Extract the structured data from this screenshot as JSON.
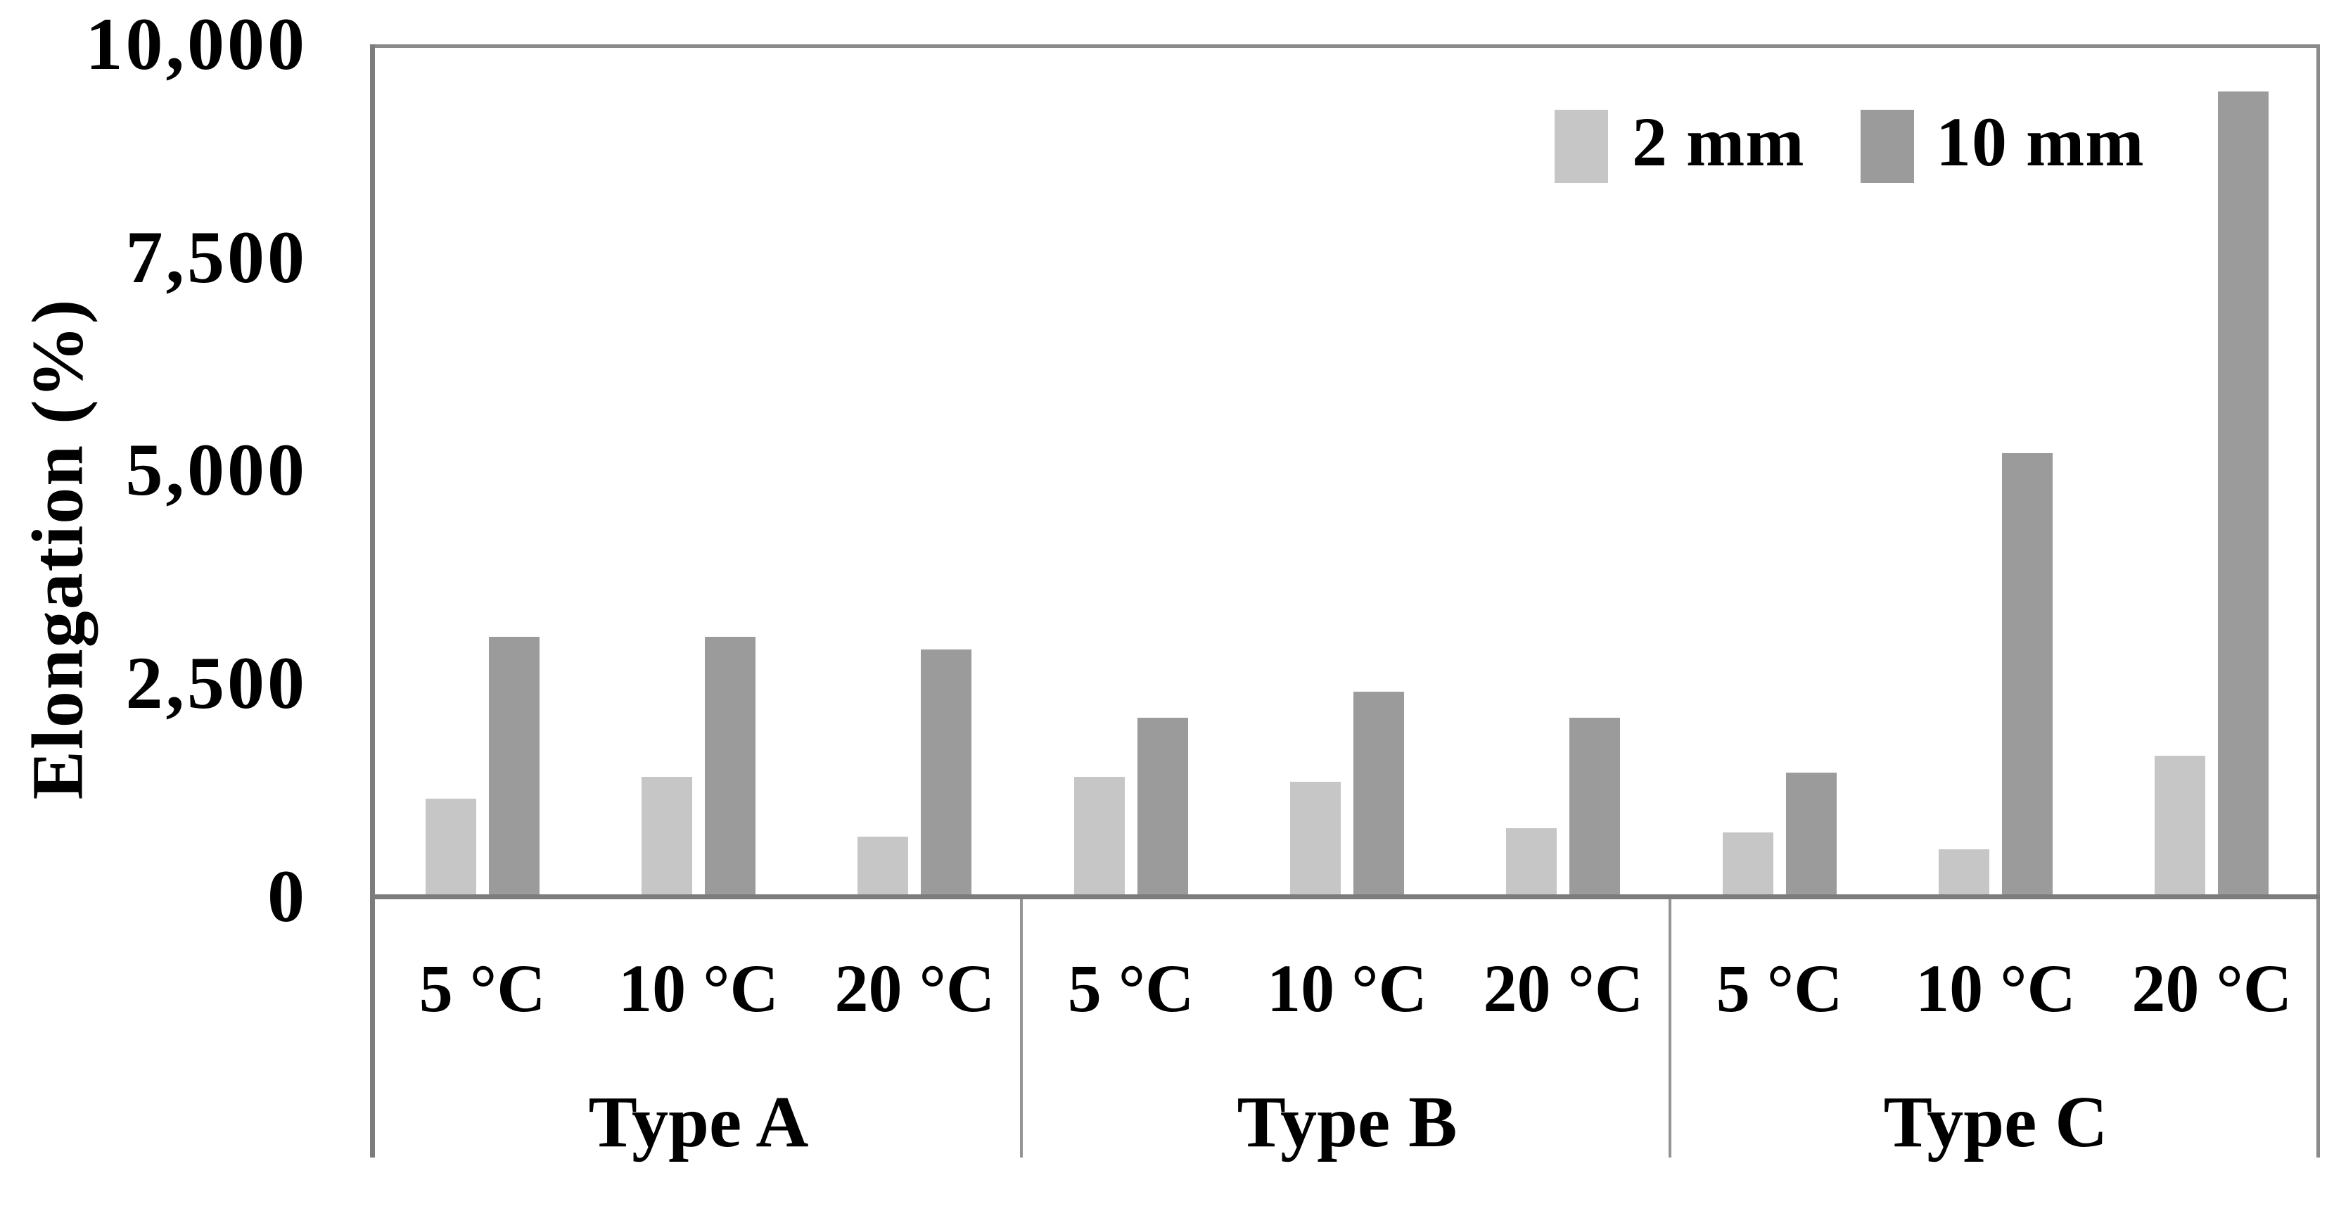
{
  "chart_data": {
    "type": "bar",
    "title": "",
    "ylabel": "Elongation (%)",
    "xlabel": "",
    "ylim": [
      0,
      10000
    ],
    "yticks": [
      0,
      2500,
      5000,
      7500,
      10000
    ],
    "ytick_labels": [
      "0",
      "2,500",
      "5,000",
      "7,500",
      "10,000"
    ],
    "grid": false,
    "legend_position": "top-right",
    "groups": [
      "Type A",
      "Type B",
      "Type C"
    ],
    "categories": [
      "5 °C",
      "10 °C",
      "20 °C"
    ],
    "series": [
      {
        "name": "2 mm",
        "color": "#c6c6c6",
        "values": [
          [
            1150,
            1400,
            700
          ],
          [
            1400,
            1350,
            800
          ],
          [
            750,
            550,
            1650
          ]
        ]
      },
      {
        "name": "10 mm",
        "color": "#9b9b9b",
        "values": [
          [
            3050,
            3050,
            2900
          ],
          [
            2100,
            2400,
            2100
          ],
          [
            1450,
            5200,
            9450
          ]
        ]
      }
    ],
    "axis_color": "#7c7c7c",
    "text_color": "#000000"
  }
}
